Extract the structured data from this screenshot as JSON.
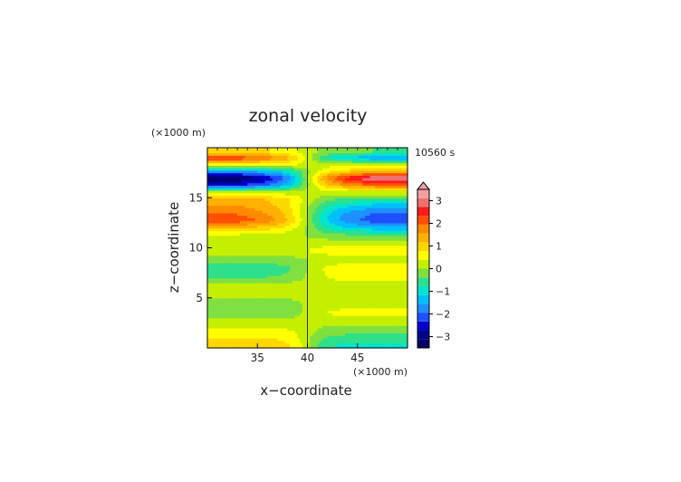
{
  "chart_data": {
    "type": "heatmap",
    "title": "zonal velocity",
    "xlabel": "x−coordinate",
    "ylabel": "z−coordinate",
    "x_unit": "(×1000 m)",
    "y_unit": "(×1000 m)",
    "time_label": "10560 s",
    "xlim": [
      30,
      50
    ],
    "ylim": [
      0,
      20
    ],
    "x_ticks": [
      "35",
      "40",
      "45"
    ],
    "x_tick_values": [
      35,
      40,
      45
    ],
    "y_ticks": [
      "5",
      "10",
      "15"
    ],
    "y_tick_values": [
      5,
      10,
      15
    ],
    "colorbar": {
      "ticks": [
        "3",
        "2",
        "1",
        "0",
        "−1",
        "−2",
        "−3"
      ],
      "tick_values": [
        3,
        2,
        1,
        0,
        -1,
        -2,
        -3
      ],
      "range": [
        -3.5,
        3.5
      ],
      "colors": [
        "#000066",
        "#00008b",
        "#0000cd",
        "#1f4fff",
        "#1e90ff",
        "#00bfff",
        "#00e5cc",
        "#2ee08a",
        "#7fe040",
        "#c4f000",
        "#ffff00",
        "#ffd700",
        "#ffb000",
        "#ff8a00",
        "#ff5000",
        "#ff1a1a",
        "#f07070",
        "#f0a0a0"
      ]
    },
    "bands": [
      {
        "z": 19.6,
        "left": 1.0,
        "right": -0.4
      },
      {
        "z": 19.0,
        "left": 2.3,
        "right": -1.6
      },
      {
        "z": 18.4,
        "left": 0.8,
        "right": 0.2
      },
      {
        "z": 17.7,
        "left": -1.6,
        "right": 1.2
      },
      {
        "z": 17.0,
        "left": -3.3,
        "right": 3.2
      },
      {
        "z": 16.3,
        "left": -2.4,
        "right": 2.0
      },
      {
        "z": 15.6,
        "left": 0.2,
        "right": 0.3
      },
      {
        "z": 14.9,
        "left": 1.4,
        "right": -0.6
      },
      {
        "z": 14.2,
        "left": 1.6,
        "right": -1.4
      },
      {
        "z": 13.5,
        "left": 1.9,
        "right": -2.0
      },
      {
        "z": 12.8,
        "left": 2.2,
        "right": -2.2
      },
      {
        "z": 12.1,
        "left": 1.3,
        "right": -1.5
      },
      {
        "z": 11.3,
        "left": 0.3,
        "right": -0.4
      },
      {
        "z": 10.5,
        "left": 0.1,
        "right": 0.3
      },
      {
        "z": 9.7,
        "left": 0.2,
        "right": 0.6
      },
      {
        "z": 8.9,
        "left": -0.2,
        "right": 0.2
      },
      {
        "z": 8.0,
        "left": -0.6,
        "right": 0.6
      },
      {
        "z": 7.1,
        "left": -0.4,
        "right": 0.5
      },
      {
        "z": 6.2,
        "left": 0.2,
        "right": 0.2
      },
      {
        "z": 5.3,
        "left": 0.1,
        "right": 0.1
      },
      {
        "z": 4.4,
        "left": -0.2,
        "right": 0.3
      },
      {
        "z": 3.5,
        "left": -0.3,
        "right": 0.5
      },
      {
        "z": 2.6,
        "left": 0.2,
        "right": 0.1
      },
      {
        "z": 1.8,
        "left": 0.5,
        "right": -0.2
      },
      {
        "z": 1.0,
        "left": 0.8,
        "right": -0.6
      },
      {
        "z": 0.3,
        "left": 1.1,
        "right": -0.9
      }
    ]
  }
}
